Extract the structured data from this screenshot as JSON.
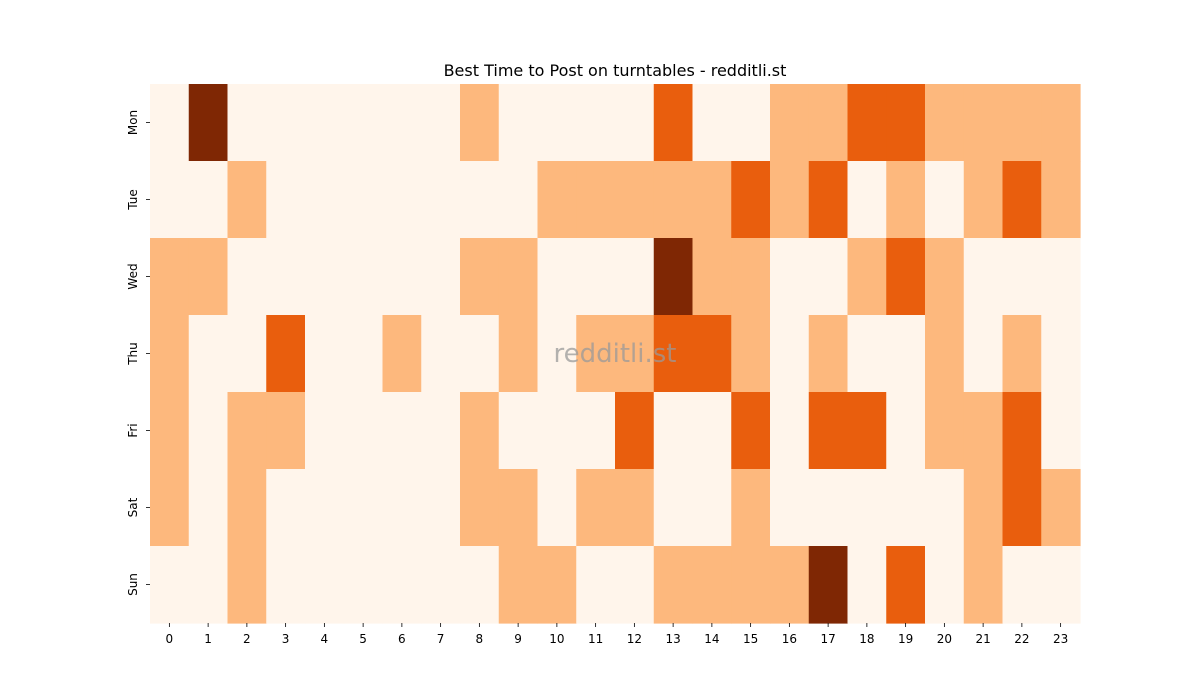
{
  "chart_data": {
    "type": "heatmap",
    "title": "Best Time to Post on turntables - redditli.st",
    "watermark": "redditli.st",
    "x_categories": [
      "0",
      "1",
      "2",
      "3",
      "4",
      "5",
      "6",
      "7",
      "8",
      "9",
      "10",
      "11",
      "12",
      "13",
      "14",
      "15",
      "16",
      "17",
      "18",
      "19",
      "20",
      "21",
      "22",
      "23"
    ],
    "y_categories": [
      "Mon",
      "Tue",
      "Wed",
      "Thu",
      "Fri",
      "Sat",
      "Sun"
    ],
    "levels": [
      [
        0,
        3,
        0,
        0,
        0,
        0,
        0,
        0,
        1,
        0,
        0,
        0,
        0,
        2,
        0,
        0,
        1,
        1,
        2,
        2,
        1,
        1,
        1,
        1
      ],
      [
        0,
        0,
        1,
        0,
        0,
        0,
        0,
        0,
        0,
        0,
        1,
        1,
        1,
        1,
        1,
        2,
        1,
        2,
        0,
        1,
        0,
        1,
        2,
        1
      ],
      [
        1,
        1,
        0,
        0,
        0,
        0,
        0,
        0,
        1,
        1,
        0,
        0,
        0,
        3,
        1,
        1,
        0,
        0,
        1,
        2,
        1,
        0,
        0,
        0
      ],
      [
        1,
        0,
        0,
        2,
        0,
        0,
        1,
        0,
        0,
        1,
        0,
        1,
        1,
        2,
        2,
        1,
        0,
        1,
        0,
        0,
        1,
        0,
        1,
        0
      ],
      [
        1,
        0,
        1,
        1,
        0,
        0,
        0,
        0,
        1,
        0,
        0,
        0,
        2,
        0,
        0,
        2,
        0,
        2,
        2,
        0,
        1,
        1,
        2,
        0
      ],
      [
        1,
        0,
        1,
        0,
        0,
        0,
        0,
        0,
        1,
        1,
        0,
        1,
        1,
        0,
        0,
        1,
        0,
        0,
        0,
        0,
        0,
        1,
        2,
        1
      ],
      [
        0,
        0,
        1,
        0,
        0,
        0,
        0,
        0,
        0,
        1,
        1,
        0,
        0,
        1,
        1,
        1,
        1,
        3,
        0,
        2,
        0,
        1,
        0,
        0
      ]
    ],
    "colorscale": [
      "#fff5eb",
      "#fdb87d",
      "#e95e0d",
      "#7f2704"
    ],
    "xlabel": "",
    "ylabel": ""
  }
}
